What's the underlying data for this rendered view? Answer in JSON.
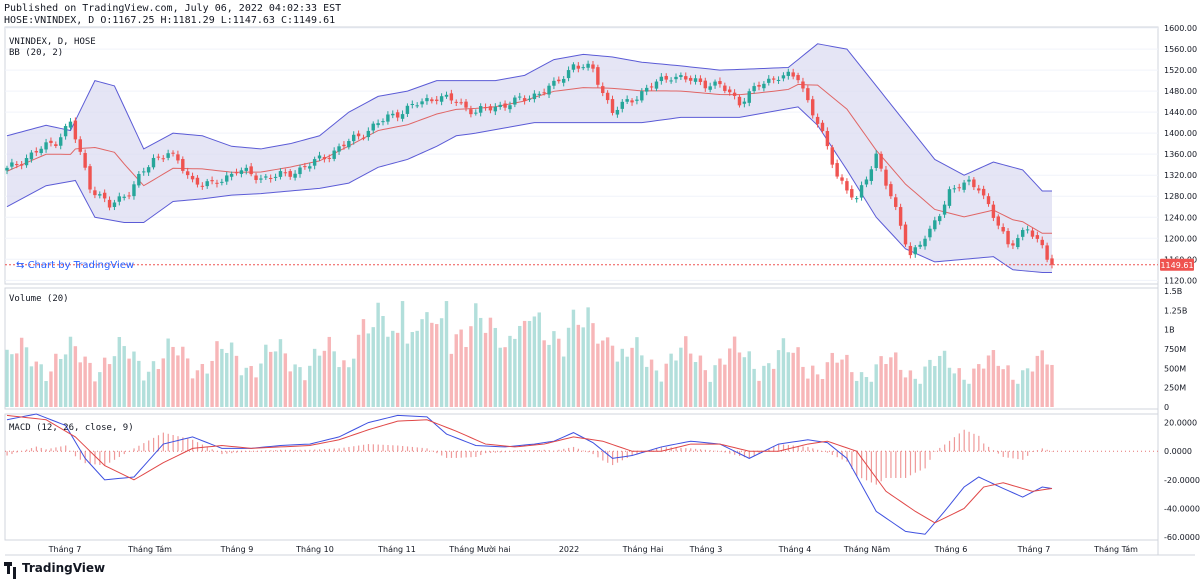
{
  "header": {
    "published": "Published on TradingView.com, July 06, 2022 04:02:33 EST",
    "ohlc": "HOSE:VNINDEX, D O:1167.25 H:1181.29 L:1147.63 C:1149.61"
  },
  "watermark": "Chart by TradingView",
  "footer": {
    "brand": "TradingView"
  },
  "colors": {
    "up": "#26a69a",
    "down": "#ef5350",
    "up_vol": "#b2dfdb",
    "down_vol": "#f7b6b8",
    "band_fill": "#dcdcf2",
    "band_line": "#5b5bd6",
    "basis": "#e06666",
    "macd": "#3f51e0",
    "signal": "#e04848",
    "price_tag": "#ef5350"
  },
  "chart_data": [
    {
      "type": "candlestick",
      "title": "VNINDEX, D, HOSE",
      "indicator_label": "BB (20, 2)",
      "y_ticks": [
        "1600.00",
        "1560.00",
        "1520.00",
        "1480.00",
        "1440.00",
        "1400.00",
        "1360.00",
        "1320.00",
        "1280.00",
        "1240.00",
        "1200.00",
        "1160.00",
        "1120.00"
      ],
      "ylim": [
        1113,
        1602
      ],
      "last_price": "1149.61",
      "x_labels": [
        "Tháng 7",
        "Tháng Tám",
        "Tháng 9",
        "Tháng 10",
        "Tháng 11",
        "Tháng Mười hai",
        "2022",
        "Tháng Hai",
        "Tháng 3",
        "Tháng 4",
        "Tháng Năm",
        "Tháng 6",
        "Tháng 7",
        "Tháng Tám"
      ],
      "close_anchors": [
        [
          0,
          1330
        ],
        [
          6,
          1365
        ],
        [
          10,
          1385
        ],
        [
          13,
          1420
        ],
        [
          17,
          1300
        ],
        [
          21,
          1260
        ],
        [
          25,
          1290
        ],
        [
          30,
          1350
        ],
        [
          33,
          1365
        ],
        [
          38,
          1310
        ],
        [
          42,
          1300
        ],
        [
          47,
          1330
        ],
        [
          52,
          1315
        ],
        [
          57,
          1320
        ],
        [
          62,
          1340
        ],
        [
          66,
          1360
        ],
        [
          72,
          1395
        ],
        [
          78,
          1430
        ],
        [
          84,
          1455
        ],
        [
          88,
          1470
        ],
        [
          92,
          1460
        ],
        [
          96,
          1440
        ],
        [
          100,
          1450
        ],
        [
          106,
          1465
        ],
        [
          112,
          1490
        ],
        [
          116,
          1530
        ],
        [
          120,
          1520
        ],
        [
          124,
          1440
        ],
        [
          128,
          1465
        ],
        [
          132,
          1490
        ],
        [
          136,
          1510
        ],
        [
          140,
          1500
        ],
        [
          146,
          1490
        ],
        [
          150,
          1460
        ],
        [
          154,
          1490
        ],
        [
          158,
          1510
        ],
        [
          162,
          1505
        ],
        [
          166,
          1420
        ],
        [
          170,
          1320
        ],
        [
          174,
          1270
        ],
        [
          178,
          1360
        ],
        [
          182,
          1250
        ],
        [
          185,
          1170
        ],
        [
          189,
          1210
        ],
        [
          193,
          1290
        ],
        [
          197,
          1305
        ],
        [
          199,
          1300
        ],
        [
          202,
          1240
        ],
        [
          205,
          1190
        ],
        [
          209,
          1215
        ],
        [
          212,
          1185
        ],
        [
          214,
          1150
        ]
      ],
      "bb_upper": [
        [
          0,
          1395
        ],
        [
          8,
          1415
        ],
        [
          13,
          1405
        ],
        [
          18,
          1500
        ],
        [
          22,
          1490
        ],
        [
          28,
          1370
        ],
        [
          34,
          1400
        ],
        [
          40,
          1395
        ],
        [
          46,
          1375
        ],
        [
          52,
          1370
        ],
        [
          58,
          1380
        ],
        [
          64,
          1395
        ],
        [
          70,
          1440
        ],
        [
          76,
          1470
        ],
        [
          82,
          1480
        ],
        [
          88,
          1500
        ],
        [
          94,
          1500
        ],
        [
          100,
          1500
        ],
        [
          106,
          1510
        ],
        [
          112,
          1540
        ],
        [
          118,
          1550
        ],
        [
          124,
          1545
        ],
        [
          130,
          1535
        ],
        [
          138,
          1528
        ],
        [
          146,
          1520
        ],
        [
          152,
          1522
        ],
        [
          160,
          1525
        ],
        [
          166,
          1570
        ],
        [
          172,
          1560
        ],
        [
          178,
          1490
        ],
        [
          184,
          1420
        ],
        [
          190,
          1350
        ],
        [
          196,
          1320
        ],
        [
          202,
          1345
        ],
        [
          208,
          1330
        ],
        [
          212,
          1290
        ]
      ],
      "bb_lower": [
        [
          0,
          1260
        ],
        [
          8,
          1300
        ],
        [
          14,
          1310
        ],
        [
          18,
          1240
        ],
        [
          24,
          1230
        ],
        [
          28,
          1230
        ],
        [
          34,
          1270
        ],
        [
          40,
          1275
        ],
        [
          46,
          1282
        ],
        [
          52,
          1285
        ],
        [
          58,
          1290
        ],
        [
          64,
          1295
        ],
        [
          70,
          1305
        ],
        [
          76,
          1335
        ],
        [
          82,
          1350
        ],
        [
          88,
          1375
        ],
        [
          92,
          1395
        ],
        [
          96,
          1400
        ],
        [
          102,
          1410
        ],
        [
          108,
          1420
        ],
        [
          114,
          1420
        ],
        [
          118,
          1420
        ],
        [
          124,
          1420
        ],
        [
          130,
          1420
        ],
        [
          138,
          1430
        ],
        [
          146,
          1430
        ],
        [
          150,
          1430
        ],
        [
          156,
          1440
        ],
        [
          162,
          1450
        ],
        [
          166,
          1415
        ],
        [
          172,
          1330
        ],
        [
          178,
          1240
        ],
        [
          184,
          1180
        ],
        [
          190,
          1155
        ],
        [
          196,
          1160
        ],
        [
          202,
          1165
        ],
        [
          206,
          1140
        ],
        [
          212,
          1135
        ]
      ]
    },
    {
      "type": "bar",
      "title": "Volume (20)",
      "y_ticks": [
        "1.5B",
        "1.25B",
        "1B",
        "750M",
        "500M",
        "250M",
        "0"
      ],
      "ylim": [
        0,
        1.5
      ],
      "unit": "B"
    },
    {
      "type": "line",
      "title": "MACD (12, 26, close, 9)",
      "y_ticks": [
        "20.0000",
        "0.0000",
        "-20.0000",
        "-40.0000",
        "-60.0000"
      ],
      "ylim": [
        -62,
        26
      ],
      "series": [
        {
          "name": "MACD",
          "points": [
            [
              0,
              22
            ],
            [
              6,
              26
            ],
            [
              12,
              18
            ],
            [
              16,
              -5
            ],
            [
              20,
              -20
            ],
            [
              26,
              -18
            ],
            [
              32,
              5
            ],
            [
              38,
              10
            ],
            [
              44,
              2
            ],
            [
              50,
              2
            ],
            [
              56,
              4
            ],
            [
              62,
              5
            ],
            [
              68,
              10
            ],
            [
              74,
              20
            ],
            [
              80,
              25
            ],
            [
              86,
              24
            ],
            [
              90,
              12
            ],
            [
              96,
              4
            ],
            [
              102,
              3
            ],
            [
              108,
              5
            ],
            [
              112,
              7
            ],
            [
              116,
              13
            ],
            [
              120,
              6
            ],
            [
              124,
              -5
            ],
            [
              128,
              -3
            ],
            [
              134,
              3
            ],
            [
              140,
              7
            ],
            [
              146,
              5
            ],
            [
              152,
              -5
            ],
            [
              158,
              5
            ],
            [
              164,
              8
            ],
            [
              168,
              6
            ],
            [
              172,
              -5
            ],
            [
              178,
              -42
            ],
            [
              184,
              -56
            ],
            [
              188,
              -58
            ],
            [
              192,
              -42
            ],
            [
              196,
              -25
            ],
            [
              199,
              -18
            ],
            [
              204,
              -26
            ],
            [
              208,
              -32
            ],
            [
              212,
              -25
            ],
            [
              214,
              -26
            ]
          ]
        },
        {
          "name": "Signal",
          "points": [
            [
              0,
              25
            ],
            [
              8,
              22
            ],
            [
              14,
              10
            ],
            [
              20,
              -10
            ],
            [
              26,
              -20
            ],
            [
              32,
              -8
            ],
            [
              38,
              2
            ],
            [
              44,
              4
            ],
            [
              50,
              2
            ],
            [
              56,
              3
            ],
            [
              62,
              4
            ],
            [
              68,
              8
            ],
            [
              74,
              15
            ],
            [
              80,
              21
            ],
            [
              86,
              22
            ],
            [
              92,
              14
            ],
            [
              98,
              5
            ],
            [
              104,
              3
            ],
            [
              110,
              5
            ],
            [
              116,
              10
            ],
            [
              122,
              7
            ],
            [
              128,
              0
            ],
            [
              134,
              0
            ],
            [
              140,
              5
            ],
            [
              146,
              5
            ],
            [
              152,
              0
            ],
            [
              158,
              0
            ],
            [
              164,
              5
            ],
            [
              168,
              7
            ],
            [
              174,
              0
            ],
            [
              180,
              -28
            ],
            [
              186,
              -42
            ],
            [
              190,
              -50
            ],
            [
              196,
              -40
            ],
            [
              200,
              -25
            ],
            [
              204,
              -22
            ],
            [
              210,
              -28
            ],
            [
              214,
              -26
            ]
          ]
        }
      ]
    }
  ]
}
